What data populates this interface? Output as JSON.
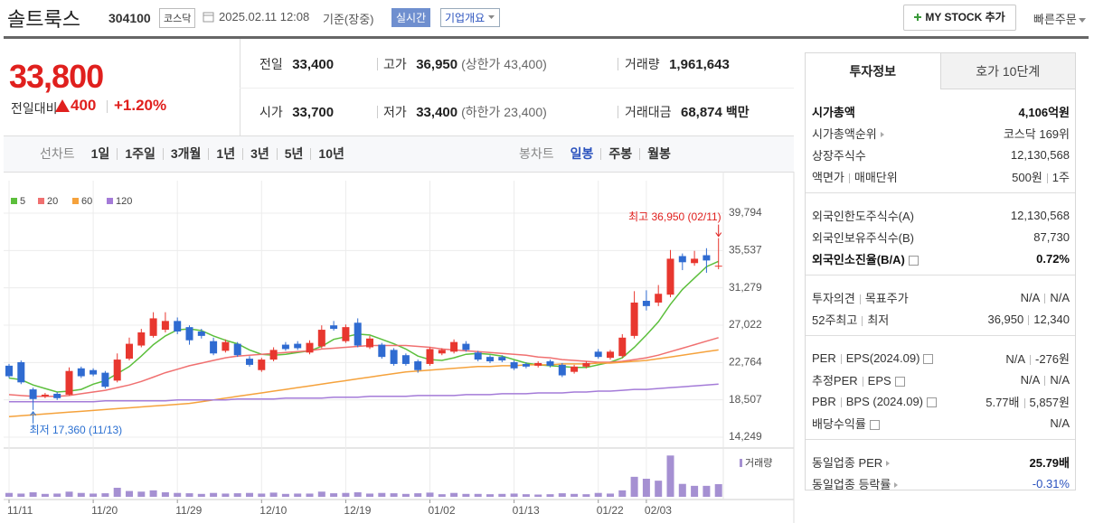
{
  "header": {
    "name": "솔트룩스",
    "code": "304100",
    "market": "코스닥",
    "datetime": "2025.02.11 12:08",
    "basis": "기준(장중)",
    "realtime": "실시간",
    "company_info": "기업개요",
    "my_stock": "MY STOCK 추가",
    "quick_order": "빠른주문"
  },
  "price": {
    "current": "33,800",
    "change_label": "전일대비",
    "change": "400",
    "change_rate": "+1.20%"
  },
  "summary": [
    {
      "label": "전일",
      "value": "33,400"
    },
    {
      "label": "고가",
      "value": "36,950",
      "note": "(상한가 43,400)"
    },
    {
      "label": "거래량",
      "value": "1,961,643"
    },
    {
      "label": "시가",
      "value": "33,700"
    },
    {
      "label": "저가",
      "value": "33,400",
      "note": "(하한가 23,400)"
    },
    {
      "label": "거래대금",
      "value": "68,874",
      "unit": "백만"
    }
  ],
  "period_tabs": {
    "line_label": "선차트",
    "line": [
      "1일",
      "1주일",
      "3개월",
      "1년",
      "3년",
      "5년",
      "10년"
    ],
    "candle_label": "봉차트",
    "candle": [
      "일봉",
      "주봉",
      "월봉"
    ]
  },
  "chart_data": {
    "type": "candlestick",
    "categories": [
      "11/11",
      null,
      null,
      null,
      null,
      null,
      null,
      "11/20",
      null,
      null,
      null,
      null,
      null,
      null,
      "11/29",
      null,
      null,
      null,
      null,
      null,
      null,
      "12/10",
      null,
      null,
      null,
      null,
      null,
      null,
      "12/19",
      null,
      null,
      null,
      null,
      null,
      null,
      "01/02",
      null,
      null,
      null,
      null,
      null,
      null,
      "01/13",
      null,
      null,
      null,
      null,
      null,
      null,
      "01/22",
      null,
      null,
      null,
      "02/03",
      null,
      null,
      null,
      null,
      null,
      null
    ],
    "open": [
      22400,
      22800,
      19700,
      18900,
      19200,
      19100,
      22100,
      21900,
      21600,
      20700,
      23200,
      24700,
      25800,
      26500,
      27500,
      26800,
      26300,
      25200,
      24100,
      24900,
      23200,
      21900,
      23100,
      24800,
      24900,
      23900,
      24600,
      27000,
      25200,
      27300,
      24500,
      24800,
      24200,
      23600,
      22900,
      22600,
      23800,
      24000,
      24900,
      23900,
      23400,
      23400,
      22800,
      22600,
      22400,
      22900,
      22500,
      21700,
      22300,
      24000,
      23300,
      23500,
      25800,
      29800,
      29600,
      30500,
      34900,
      34100,
      35000,
      33700
    ],
    "high": [
      22600,
      23000,
      19900,
      19300,
      19400,
      22200,
      22300,
      22100,
      21800,
      23800,
      25600,
      26600,
      28500,
      28500,
      27900,
      27000,
      26600,
      25600,
      25400,
      25100,
      23500,
      23300,
      24500,
      25100,
      25200,
      25300,
      27000,
      27500,
      27100,
      27800,
      25800,
      25000,
      24400,
      23800,
      23100,
      24500,
      24400,
      25400,
      25200,
      24100,
      23600,
      23600,
      23000,
      22800,
      22900,
      23100,
      22700,
      22500,
      22900,
      24300,
      24200,
      26000,
      30900,
      31000,
      31600,
      35600,
      35200,
      35500,
      35800,
      36950
    ],
    "low": [
      21000,
      20300,
      17360,
      18700,
      18500,
      19000,
      21000,
      21200,
      19800,
      20500,
      23000,
      24500,
      25600,
      26200,
      26000,
      24800,
      25500,
      23600,
      23900,
      23400,
      22300,
      21700,
      22900,
      24100,
      24200,
      23700,
      24400,
      26400,
      25000,
      24500,
      24300,
      23200,
      22400,
      22400,
      21600,
      22400,
      23600,
      23800,
      24000,
      22900,
      22700,
      22800,
      21900,
      22100,
      22200,
      22200,
      21100,
      21500,
      22100,
      23200,
      23100,
      23300,
      25500,
      28700,
      29200,
      30200,
      33300,
      33800,
      33000,
      33400
    ],
    "close": [
      21200,
      20500,
      18600,
      19100,
      18700,
      21800,
      21200,
      21400,
      20000,
      23100,
      24900,
      26200,
      27800,
      27500,
      26300,
      25300,
      25800,
      23800,
      25100,
      23600,
      22500,
      23100,
      24200,
      24300,
      24400,
      25000,
      26500,
      26600,
      26800,
      24700,
      25500,
      23400,
      22600,
      22600,
      21900,
      24300,
      24200,
      25100,
      24200,
      23100,
      22900,
      23000,
      22100,
      22300,
      22700,
      22400,
      21300,
      22300,
      22700,
      23400,
      24000,
      25600,
      29600,
      29200,
      30600,
      34600,
      34200,
      34600,
      34400,
      33800
    ],
    "up_color": "#e8372f",
    "down_color": "#2f6bd1",
    "ylim": [
      14249,
      39794
    ],
    "yticks": [
      {
        "value": 14249,
        "label": "14,249"
      },
      {
        "value": 18507,
        "label": "18,507"
      },
      {
        "value": 22764,
        "label": "22,764"
      },
      {
        "value": 27022,
        "label": "27,022"
      },
      {
        "value": 31279,
        "label": "31,279"
      },
      {
        "value": 35537,
        "label": "35,537"
      },
      {
        "value": 39794,
        "label": "39,794"
      }
    ],
    "grid": true,
    "series": [
      {
        "name": "5",
        "color": "#5cbf3c",
        "values": [
          21000,
          20800,
          20200,
          19800,
          19400,
          19500,
          19700,
          20300,
          20700,
          21500,
          22300,
          23500,
          24800,
          25800,
          26500,
          26600,
          26400,
          25800,
          25300,
          24900,
          24200,
          23700,
          23600,
          23700,
          23900,
          24100,
          24600,
          25400,
          25700,
          26000,
          25900,
          25400,
          24900,
          24300,
          23500,
          23100,
          23000,
          23300,
          23700,
          23800,
          23700,
          23500,
          23100,
          22700,
          22500,
          22400,
          22300,
          22200,
          22200,
          22500,
          22800,
          23300,
          24500,
          25900,
          27400,
          29400,
          31100,
          32400,
          33700,
          34300
        ]
      },
      {
        "name": "20",
        "color": "#f07070",
        "values": [
          19100,
          19000,
          18900,
          18900,
          18900,
          19000,
          19200,
          19400,
          19600,
          19900,
          20200,
          20600,
          21100,
          21600,
          22000,
          22400,
          22700,
          23000,
          23300,
          23500,
          23600,
          23700,
          23800,
          23900,
          24000,
          24100,
          24300,
          24400,
          24500,
          24600,
          24700,
          24700,
          24700,
          24700,
          24600,
          24500,
          24300,
          24200,
          24100,
          24000,
          23900,
          23800,
          23700,
          23600,
          23400,
          23300,
          23100,
          23000,
          22900,
          22800,
          22800,
          22900,
          23100,
          23300,
          23600,
          24000,
          24400,
          24800,
          25200,
          25600
        ]
      },
      {
        "name": "60",
        "color": "#f5a23c",
        "values": [
          16600,
          16700,
          16800,
          16900,
          17000,
          17100,
          17200,
          17300,
          17400,
          17500,
          17600,
          17700,
          17800,
          17900,
          18000,
          18100,
          18300,
          18500,
          18700,
          18900,
          19100,
          19300,
          19500,
          19700,
          19900,
          20100,
          20300,
          20500,
          20700,
          20900,
          21100,
          21300,
          21500,
          21700,
          21800,
          21900,
          22000,
          22100,
          22200,
          22300,
          22300,
          22400,
          22400,
          22500,
          22500,
          22500,
          22600,
          22600,
          22600,
          22700,
          22700,
          22800,
          22900,
          23000,
          23200,
          23400,
          23600,
          23800,
          24000,
          24200
        ]
      },
      {
        "name": "120",
        "color": "#a47bd8",
        "values": [
          18300,
          18300,
          18300,
          18300,
          18300,
          18300,
          18300,
          18300,
          18400,
          18400,
          18400,
          18400,
          18400,
          18400,
          18500,
          18500,
          18500,
          18500,
          18500,
          18600,
          18600,
          18600,
          18600,
          18700,
          18700,
          18700,
          18700,
          18800,
          18800,
          18800,
          18900,
          18900,
          18900,
          18900,
          19000,
          19000,
          19000,
          19000,
          19100,
          19100,
          19100,
          19200,
          19200,
          19200,
          19300,
          19300,
          19300,
          19400,
          19400,
          19500,
          19500,
          19600,
          19700,
          19700,
          19800,
          19900,
          20000,
          20100,
          20200,
          20300
        ]
      }
    ],
    "volume_label": "거래량",
    "volume_color": "#a590d2",
    "volume": [
      600000,
      500000,
      700000,
      450000,
      500000,
      800000,
      600000,
      500000,
      550000,
      1400000,
      900000,
      800000,
      1000000,
      700000,
      600000,
      550000,
      450000,
      600000,
      500000,
      550000,
      600000,
      500000,
      650000,
      450000,
      500000,
      500000,
      800000,
      550000,
      600000,
      700000,
      500000,
      600000,
      550000,
      450000,
      550000,
      650000,
      400000,
      600000,
      450000,
      450000,
      400000,
      450000,
      500000,
      400000,
      350000,
      400000,
      550000,
      450000,
      400000,
      600000,
      500000,
      1000000,
      3100000,
      2800000,
      2500000,
      6400000,
      2000000,
      1700000,
      1700000,
      1961643
    ],
    "volume_ylim": [
      0,
      7000000
    ],
    "annotations": [
      {
        "text": "최고 36,950 (02/11)",
        "value": 36950
      },
      {
        "text": "최저 17,360 (11/13)",
        "value": 17360
      }
    ]
  },
  "invest_panel": {
    "tabs": [
      "투자정보",
      "호가 10단계"
    ],
    "groups": [
      [
        {
          "label": [
            "시가총액"
          ],
          "value": [
            "4,106억원"
          ]
        },
        {
          "label": [
            "시가총액순위"
          ],
          "value": [
            "코스닥 169위"
          ]
        },
        {
          "label": [
            "상장주식수"
          ],
          "value": [
            "12,130,568"
          ]
        },
        {
          "label": [
            "액면가",
            "매매단위"
          ],
          "value": [
            "500원",
            "1주"
          ]
        }
      ],
      [
        {
          "label": [
            "외국인한도주식수(A)"
          ],
          "value": [
            "12,130,568"
          ]
        },
        {
          "label": [
            "외국인보유주식수(B)"
          ],
          "value": [
            "87,730"
          ]
        },
        {
          "label": [
            "외국인소진율(B/A)"
          ],
          "value": [
            "0.72%"
          ]
        }
      ],
      [
        {
          "label": [
            "투자의견",
            "목표주가"
          ],
          "value": [
            "N/A",
            "N/A"
          ]
        },
        {
          "label": [
            "52주최고",
            "최저"
          ],
          "value": [
            "36,950",
            "12,340"
          ]
        }
      ],
      [
        {
          "label": [
            "PER",
            "EPS(2024.09)"
          ],
          "value": [
            "N/A",
            "-276원"
          ]
        },
        {
          "label": [
            "추정PER",
            "EPS"
          ],
          "value": [
            "N/A",
            "N/A"
          ]
        },
        {
          "label": [
            "PBR",
            "BPS (2024.09)"
          ],
          "value": [
            "5.77배",
            "5,857원"
          ]
        },
        {
          "label": [
            "배당수익률"
          ],
          "value": [
            "N/A"
          ]
        }
      ],
      [
        {
          "label": [
            "동일업종 PER"
          ],
          "value": [
            "25.79배"
          ]
        },
        {
          "label": [
            "동일업종 등락률"
          ],
          "value": [
            "-0.31%"
          ]
        }
      ]
    ]
  }
}
